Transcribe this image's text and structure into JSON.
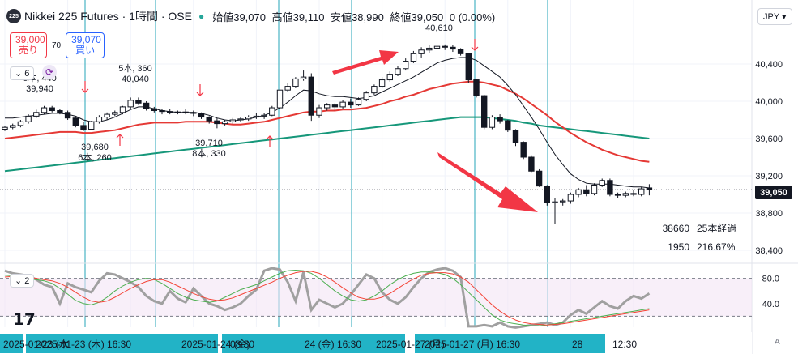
{
  "legend": {
    "symbol_icon": "225",
    "title": "Nikkei 225 Futures · 1時間 · OSE",
    "ohlc": [
      {
        "label": "始値",
        "value": "39,070"
      },
      {
        "label": "高値",
        "value": "39,110"
      },
      {
        "label": "安値",
        "value": "38,990"
      },
      {
        "label": "終値",
        "value": "39,050"
      }
    ],
    "change": "0 (0.00%)"
  },
  "trade": {
    "sell_price": "39,000",
    "sell_label": "売り",
    "spread": "70",
    "buy_price": "39,070",
    "buy_label": "買い"
  },
  "currency": "JPY",
  "indicator_toggle": "6",
  "osc_toggle": "2",
  "colors": {
    "up": "#ffffff",
    "down": "#131722",
    "ma_short": "#131722",
    "ma_mid": "#e53935",
    "ma_long": "#16977a",
    "vline": "#26a6b8",
    "arrow": "#f23645",
    "stoch_k": "#4caf50",
    "stoch_d": "#f44336",
    "rsi": "#a0a0a0",
    "axis_bg": "#22b3c6"
  },
  "chart_data": {
    "type": "candlestick",
    "ylim": [
      38400,
      40800
    ],
    "y_ticks": [
      40400,
      40000,
      39600,
      39200,
      38800,
      38400
    ],
    "y_tick_labels": [
      "40,400",
      "40,000",
      "39,600",
      "39,200",
      "38,800",
      "38,400"
    ],
    "current_price": 39050,
    "current_price_label": "39,050",
    "ohlc": [
      [
        39700,
        39730,
        39680,
        39720
      ],
      [
        39720,
        39760,
        39700,
        39740
      ],
      [
        39740,
        39800,
        39720,
        39780
      ],
      [
        39780,
        39860,
        39760,
        39840
      ],
      [
        39840,
        39910,
        39820,
        39880
      ],
      [
        39880,
        39950,
        39860,
        39930
      ],
      [
        39930,
        39950,
        39880,
        39900
      ],
      [
        39900,
        39920,
        39860,
        39880
      ],
      [
        39880,
        39900,
        39800,
        39820
      ],
      [
        39820,
        39840,
        39720,
        39740
      ],
      [
        39740,
        39780,
        39680,
        39700
      ],
      [
        39700,
        39790,
        39690,
        39780
      ],
      [
        39780,
        39850,
        39760,
        39830
      ],
      [
        39830,
        39880,
        39800,
        39860
      ],
      [
        39860,
        39900,
        39840,
        39880
      ],
      [
        39880,
        39950,
        39860,
        39940
      ],
      [
        39940,
        40040,
        39920,
        40010
      ],
      [
        40010,
        40040,
        39960,
        39980
      ],
      [
        39980,
        40000,
        39900,
        39920
      ],
      [
        39920,
        39940,
        39880,
        39900
      ],
      [
        39900,
        39920,
        39860,
        39890
      ],
      [
        39890,
        39920,
        39860,
        39880
      ],
      [
        39880,
        39900,
        39860,
        39885
      ],
      [
        39885,
        39920,
        39860,
        39880
      ],
      [
        39880,
        39900,
        39840,
        39870
      ],
      [
        39870,
        39880,
        39810,
        39830
      ],
      [
        39830,
        39840,
        39760,
        39790
      ],
      [
        39790,
        39820,
        39710,
        39760
      ],
      [
        39760,
        39800,
        39740,
        39780
      ],
      [
        39780,
        39820,
        39760,
        39800
      ],
      [
        39800,
        39830,
        39780,
        39810
      ],
      [
        39810,
        39850,
        39790,
        39830
      ],
      [
        39830,
        39870,
        39810,
        39840
      ],
      [
        39840,
        39870,
        39810,
        39850
      ],
      [
        39850,
        39950,
        39840,
        39930
      ],
      [
        39930,
        40140,
        39920,
        40120
      ],
      [
        40120,
        40200,
        40100,
        40160
      ],
      [
        40160,
        40260,
        40140,
        40240
      ],
      [
        40240,
        40330,
        40220,
        40260
      ],
      [
        40260,
        40300,
        39790,
        39850
      ],
      [
        39850,
        39960,
        39820,
        39930
      ],
      [
        39930,
        39980,
        39900,
        39960
      ],
      [
        39960,
        39980,
        39900,
        39940
      ],
      [
        39940,
        40010,
        39920,
        39990
      ],
      [
        39990,
        40030,
        39930,
        39960
      ],
      [
        39960,
        40040,
        39950,
        40020
      ],
      [
        40020,
        40110,
        40000,
        40090
      ],
      [
        40090,
        40180,
        40070,
        40160
      ],
      [
        40160,
        40260,
        40140,
        40230
      ],
      [
        40230,
        40320,
        40210,
        40290
      ],
      [
        40290,
        40380,
        40270,
        40350
      ],
      [
        40350,
        40460,
        40330,
        40430
      ],
      [
        40430,
        40540,
        40410,
        40510
      ],
      [
        40510,
        40580,
        40470,
        40550
      ],
      [
        40550,
        40600,
        40520,
        40570
      ],
      [
        40570,
        40610,
        40540,
        40590
      ],
      [
        40590,
        40610,
        40550,
        40580
      ],
      [
        40580,
        40600,
        40530,
        40560
      ],
      [
        40560,
        40570,
        40490,
        40510
      ],
      [
        40510,
        40520,
        40200,
        40230
      ],
      [
        40230,
        40240,
        40040,
        40060
      ],
      [
        40060,
        40070,
        39700,
        39720
      ],
      [
        39720,
        39850,
        39700,
        39830
      ],
      [
        39830,
        39860,
        39760,
        39790
      ],
      [
        39790,
        39800,
        39670,
        39690
      ],
      [
        39690,
        39700,
        39520,
        39560
      ],
      [
        39560,
        39570,
        39380,
        39400
      ],
      [
        39400,
        39420,
        39240,
        39250
      ],
      [
        39250,
        39270,
        39080,
        39090
      ],
      [
        39090,
        39100,
        38880,
        38910
      ],
      [
        38910,
        38960,
        38680,
        38920
      ],
      [
        38920,
        38950,
        38880,
        38930
      ],
      [
        38930,
        39020,
        38900,
        39000
      ],
      [
        39000,
        39070,
        38970,
        39050
      ],
      [
        39050,
        39100,
        38980,
        39010
      ],
      [
        39010,
        39120,
        38990,
        39100
      ],
      [
        39100,
        39170,
        39080,
        39150
      ],
      [
        39150,
        39170,
        38980,
        39000
      ],
      [
        39000,
        39020,
        38960,
        38990
      ],
      [
        38990,
        39030,
        38970,
        39010
      ],
      [
        39010,
        39050,
        38980,
        39000
      ],
      [
        39000,
        39080,
        38980,
        39060
      ],
      [
        39070,
        39110,
        38990,
        39050
      ]
    ],
    "ma_short": [
      39820,
      39820,
      39830,
      39840,
      39850,
      39860,
      39870,
      39870,
      39860,
      39840,
      39800,
      39780,
      39780,
      39800,
      39830,
      39870,
      39910,
      39940,
      39940,
      39920,
      39900,
      39890,
      39880,
      39880,
      39880,
      39870,
      39850,
      39820,
      39800,
      39790,
      39800,
      39810,
      39830,
      39850,
      39880,
      39930,
      39990,
      40060,
      40120,
      40110,
      40080,
      40060,
      40050,
      40050,
      40040,
      40030,
      40040,
      40060,
      40100,
      40140,
      40180,
      40220,
      40260,
      40310,
      40360,
      40410,
      40440,
      40460,
      40470,
      40470,
      40440,
      40380,
      40320,
      40260,
      40170,
      40070,
      39950,
      39830,
      39700,
      39560,
      39430,
      39320,
      39220,
      39160,
      39120,
      39110,
      39110,
      39110,
      39100,
      39090,
      39080,
      39080,
      39070
    ],
    "ma_mid": [
      39600,
      39610,
      39620,
      39630,
      39640,
      39650,
      39660,
      39670,
      39670,
      39670,
      39660,
      39660,
      39670,
      39680,
      39690,
      39710,
      39730,
      39750,
      39760,
      39770,
      39770,
      39770,
      39770,
      39780,
      39780,
      39780,
      39780,
      39770,
      39760,
      39750,
      39750,
      39760,
      39770,
      39780,
      39800,
      39820,
      39840,
      39860,
      39880,
      39890,
      39890,
      39900,
      39900,
      39910,
      39910,
      39920,
      39930,
      39950,
      39970,
      40000,
      40020,
      40050,
      40070,
      40100,
      40130,
      40150,
      40170,
      40190,
      40200,
      40210,
      40210,
      40200,
      40180,
      40160,
      40120,
      40080,
      40030,
      39970,
      39910,
      39850,
      39780,
      39720,
      39660,
      39610,
      39560,
      39520,
      39480,
      39450,
      39420,
      39400,
      39380,
      39360,
      39350
    ],
    "ma_long": [
      39250,
      39260,
      39270,
      39280,
      39290,
      39300,
      39310,
      39320,
      39330,
      39340,
      39350,
      39360,
      39370,
      39380,
      39390,
      39400,
      39410,
      39420,
      39430,
      39440,
      39450,
      39460,
      39470,
      39480,
      39490,
      39500,
      39510,
      39520,
      39530,
      39540,
      39550,
      39560,
      39570,
      39580,
      39590,
      39600,
      39610,
      39620,
      39630,
      39640,
      39650,
      39660,
      39670,
      39680,
      39690,
      39700,
      39710,
      39720,
      39730,
      39740,
      39750,
      39760,
      39770,
      39780,
      39790,
      39800,
      39810,
      39820,
      39830,
      39830,
      39830,
      39830,
      39820,
      39810,
      39800,
      39790,
      39770,
      39760,
      39740,
      39730,
      39720,
      39710,
      39700,
      39690,
      39680,
      39670,
      39660,
      39650,
      39640,
      39630,
      39620,
      39610,
      39600
    ],
    "v_lines_idx": [
      12,
      23,
      41,
      54,
      71
    ],
    "up_arrows_idx": [
      17,
      40
    ],
    "down_arrows_idx": [
      12,
      30,
      71
    ],
    "annotations": [
      {
        "idx": 4,
        "price": 40050,
        "lines": [
          "6本, 440",
          "39,940"
        ]
      },
      {
        "idx": 19,
        "price": 40180,
        "lines": [
          "5本, 360",
          "40,040"
        ]
      },
      {
        "idx": 12,
        "price": 39500,
        "lines": [
          "39,680",
          "6本, 260"
        ]
      },
      {
        "idx": 31,
        "price": 39520,
        "lines": [
          "39,710",
          "8本, 330"
        ]
      },
      {
        "idx": 64,
        "price": 40720,
        "lines": [
          "40,610"
        ]
      }
    ],
    "stats": [
      [
        "38660",
        "25本経過"
      ],
      [
        "1950",
        "216.67%"
      ]
    ],
    "oscillator": {
      "ylim": [
        0,
        100
      ],
      "y_ticks": [
        80,
        40
      ],
      "y_tick_labels": [
        "80.0",
        "40.0"
      ],
      "levels": [
        80,
        20
      ],
      "k": [
        85,
        84,
        82,
        80,
        78,
        76,
        72,
        64,
        55,
        45,
        40,
        38,
        42,
        50,
        60,
        68,
        74,
        78,
        80,
        78,
        72,
        64,
        56,
        50,
        46,
        44,
        42,
        44,
        50,
        56,
        62,
        66,
        70,
        76,
        82,
        88,
        92,
        93,
        92,
        88,
        80,
        70,
        60,
        52,
        46,
        44,
        46,
        52,
        60,
        70,
        78,
        84,
        88,
        90,
        90,
        89,
        86,
        80,
        70,
        58,
        46,
        34,
        22,
        14,
        10,
        8,
        6,
        5,
        5,
        6,
        8,
        10,
        12,
        14,
        16,
        18,
        20,
        22,
        24,
        26,
        28,
        30,
        32
      ],
      "d": [
        82,
        83,
        83,
        82,
        80,
        78,
        76,
        72,
        66,
        58,
        50,
        44,
        42,
        44,
        50,
        57,
        64,
        70,
        75,
        78,
        78,
        74,
        68,
        62,
        56,
        51,
        47,
        45,
        46,
        49,
        54,
        59,
        64,
        69,
        74,
        80,
        85,
        89,
        91,
        91,
        88,
        82,
        74,
        65,
        57,
        50,
        47,
        47,
        50,
        56,
        64,
        72,
        79,
        85,
        88,
        89,
        89,
        87,
        82,
        74,
        62,
        50,
        38,
        28,
        20,
        14,
        10,
        8,
        7,
        6,
        7,
        8,
        10,
        12,
        14,
        16,
        18,
        20,
        22,
        24,
        26,
        28,
        30
      ],
      "rsi": [
        92,
        88,
        86,
        84,
        78,
        70,
        66,
        40,
        72,
        66,
        62,
        58,
        76,
        88,
        86,
        80,
        74,
        66,
        52,
        44,
        40,
        60,
        48,
        42,
        64,
        52,
        40,
        36,
        30,
        34,
        40,
        52,
        62,
        92,
        96,
        94,
        74,
        44,
        90,
        30,
        46,
        40,
        34,
        40,
        54,
        70,
        86,
        80,
        58,
        46,
        40,
        50,
        66,
        80,
        90,
        94,
        96,
        92,
        82,
        4,
        4,
        6,
        4,
        10,
        4,
        2,
        4,
        6,
        8,
        10,
        6,
        10,
        22,
        30,
        24,
        34,
        44,
        36,
        32,
        44,
        52,
        48,
        56
      ]
    },
    "x_labels": [
      {
        "idx": 4,
        "text": "2025-01-23 (木"
      },
      {
        "idx": 20,
        "text": "2025-01-23 (木)"
      },
      {
        "idx": 32,
        "text": "16:30"
      },
      {
        "idx": 43,
        "text": "2025-01-24 (金)"
      },
      {
        "idx": 51,
        "text": "08:30"
      },
      {
        "idx": 57,
        "text": "24 (金)"
      },
      {
        "idx": 64,
        "text": "16:30"
      },
      {
        "idx": 74,
        "text": "2025-01-27 (月)"
      },
      {
        "idx": 89,
        "text": "2025-01-27 (月)"
      },
      {
        "idx": 101,
        "text": "16:30"
      },
      {
        "idx": 108,
        "text": "28"
      },
      {
        "idx": 126,
        "text": "12:30"
      }
    ]
  }
}
